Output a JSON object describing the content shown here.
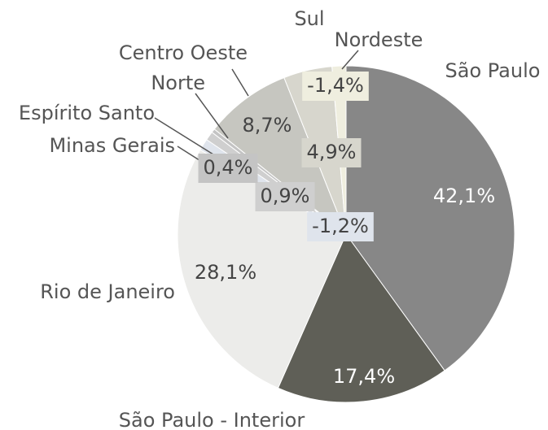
{
  "chart_data": {
    "type": "pie",
    "categories": [
      "São Paulo",
      "São Paulo - Interior",
      "Rio de Janeiro",
      "Minas Gerais",
      "Espírito Santo",
      "Norte",
      "Centro Oeste",
      "Sul",
      "Nordeste"
    ],
    "values": [
      42.1,
      17.4,
      28.1,
      -1.2,
      0.9,
      0.4,
      8.7,
      4.9,
      -1.4
    ],
    "value_labels": [
      "42,1%",
      "17,4%",
      "28,1%",
      "-1,2%",
      "0,9%",
      "0,4%",
      "8,7%",
      "4,9%",
      "-1,4%"
    ],
    "colors": [
      "#878787",
      "#5f5f57",
      "#ececea",
      "#dfe4ec",
      "#cfcfcf",
      "#c4c4c4",
      "#c6c6c0",
      "#d7d6cd",
      "#efeedf"
    ]
  }
}
